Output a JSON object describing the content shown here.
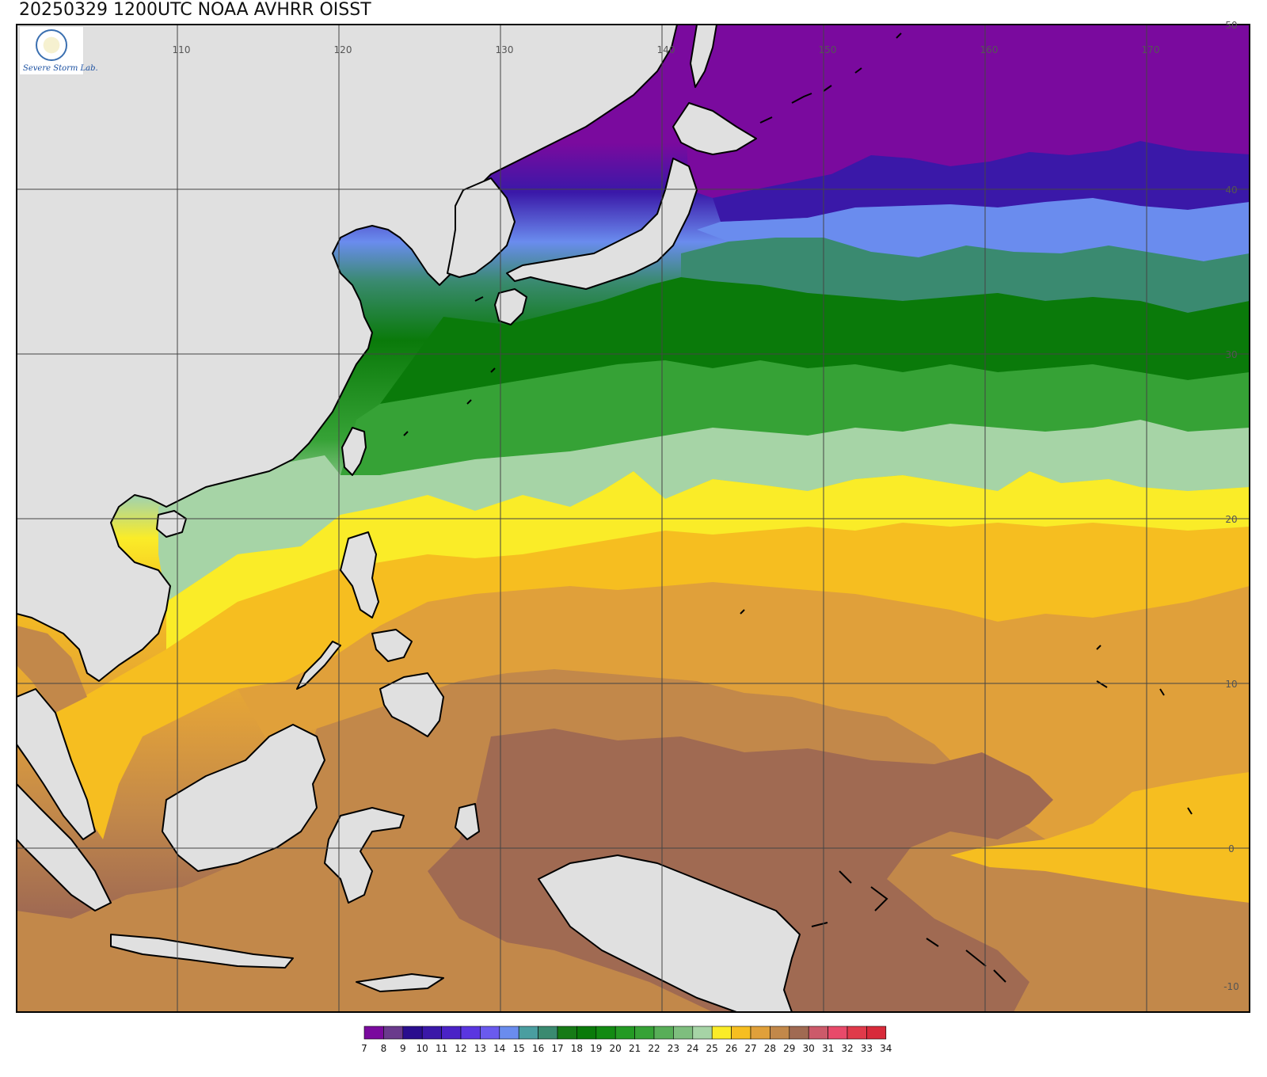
{
  "title": "20250329 1200UTC NOAA AVHRR OISST",
  "logo": {
    "name": "severe-storm-lab-logo",
    "text": "Severe Storm Lab."
  },
  "lon_labels": [
    "110",
    "120",
    "130",
    "140",
    "150",
    "160",
    "170"
  ],
  "lat_labels": [
    "50",
    "40",
    "30",
    "20",
    "10",
    "0",
    "-10"
  ],
  "colorbar": {
    "labels": [
      "7",
      "8",
      "9",
      "10",
      "11",
      "12",
      "13",
      "14",
      "15",
      "16",
      "17",
      "18",
      "19",
      "20",
      "21",
      "22",
      "23",
      "24",
      "25",
      "26",
      "27",
      "28",
      "29",
      "30",
      "31",
      "32",
      "33",
      "34"
    ],
    "colors": [
      "#7a0a9e",
      "#6a3a8c",
      "#2a0e8e",
      "#3a18a8",
      "#4a22c6",
      "#5a36e0",
      "#6a5aee",
      "#6a8cee",
      "#4a9ea0",
      "#3a8a70",
      "#167a16",
      "#0a7a0a",
      "#128a12",
      "#249a24",
      "#36a236",
      "#58ae58",
      "#7ebe7e",
      "#a6d4a6",
      "#faec28",
      "#f6be20",
      "#e0a03a",
      "#c2884a",
      "#a06a52",
      "#cc5a6a",
      "#e84a6a",
      "#e03a4a",
      "#d82a3a"
    ]
  },
  "colors": {
    "land": "#e0e0e0",
    "coast": "#000000",
    "grid": "#444444"
  }
}
